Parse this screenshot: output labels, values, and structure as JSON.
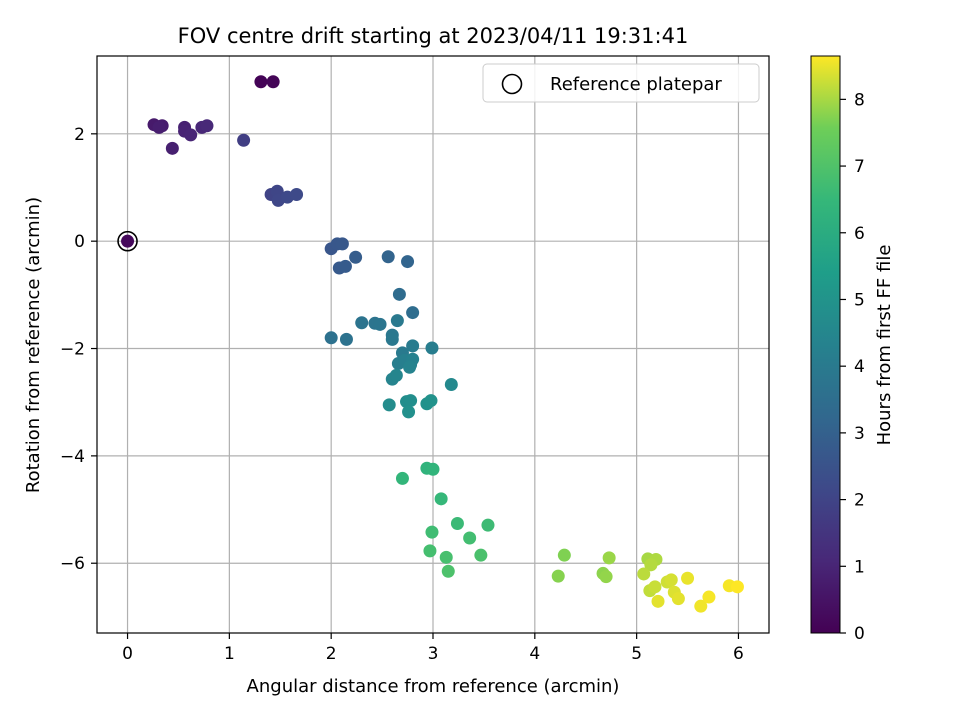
{
  "chart_data": {
    "type": "scatter",
    "title": "FOV centre drift starting at 2023/04/11 19:31:41",
    "xlabel": "Angular distance from reference (arcmin)",
    "ylabel": "Rotation from reference (arcmin)",
    "xlim": [
      -0.3,
      6.3
    ],
    "ylim": [
      -7.3,
      3.45
    ],
    "xticks": [
      0,
      1,
      2,
      3,
      4,
      5,
      6
    ],
    "yticks": [
      -6,
      -4,
      -2,
      0,
      2
    ],
    "grid": true,
    "legend": {
      "position": "top-right",
      "entries": [
        "Reference platepar"
      ]
    },
    "reference_point": {
      "x": 0,
      "y": 0
    },
    "colorbar": {
      "label": "Hours from first FF file",
      "colormap": "viridis",
      "range": [
        0,
        8.65
      ],
      "ticks": [
        0,
        1,
        2,
        3,
        4,
        5,
        6,
        7,
        8
      ]
    },
    "points": [
      {
        "x": 1.31,
        "y": 2.97,
        "c": 0.05
      },
      {
        "x": 1.43,
        "y": 2.97,
        "c": 0.1
      },
      {
        "x": 0.0,
        "y": 0.0,
        "c": 0.2
      },
      {
        "x": 0.26,
        "y": 2.17,
        "c": 0.7
      },
      {
        "x": 0.34,
        "y": 2.15,
        "c": 0.75
      },
      {
        "x": 0.31,
        "y": 2.12,
        "c": 0.8
      },
      {
        "x": 0.44,
        "y": 1.73,
        "c": 0.85
      },
      {
        "x": 0.56,
        "y": 2.12,
        "c": 0.9
      },
      {
        "x": 0.56,
        "y": 2.05,
        "c": 0.95
      },
      {
        "x": 0.62,
        "y": 1.98,
        "c": 1.0
      },
      {
        "x": 0.73,
        "y": 2.12,
        "c": 1.05
      },
      {
        "x": 0.78,
        "y": 2.15,
        "c": 1.1
      },
      {
        "x": 1.14,
        "y": 1.88,
        "c": 1.8
      },
      {
        "x": 1.41,
        "y": 0.87,
        "c": 2.0
      },
      {
        "x": 1.47,
        "y": 0.93,
        "c": 2.05
      },
      {
        "x": 1.48,
        "y": 0.76,
        "c": 2.1
      },
      {
        "x": 1.57,
        "y": 0.82,
        "c": 2.15
      },
      {
        "x": 1.66,
        "y": 0.87,
        "c": 2.2
      },
      {
        "x": 2.0,
        "y": -0.14,
        "c": 2.6
      },
      {
        "x": 2.06,
        "y": -0.05,
        "c": 2.65
      },
      {
        "x": 2.11,
        "y": -0.05,
        "c": 2.7
      },
      {
        "x": 2.08,
        "y": -0.5,
        "c": 2.75
      },
      {
        "x": 2.14,
        "y": -0.47,
        "c": 2.8
      },
      {
        "x": 2.24,
        "y": -0.3,
        "c": 2.85
      },
      {
        "x": 2.56,
        "y": -0.29,
        "c": 3.1
      },
      {
        "x": 2.75,
        "y": -0.38,
        "c": 3.15
      },
      {
        "x": 2.67,
        "y": -0.99,
        "c": 3.4
      },
      {
        "x": 2.8,
        "y": -1.33,
        "c": 3.45
      },
      {
        "x": 2.0,
        "y": -1.8,
        "c": 3.6
      },
      {
        "x": 2.15,
        "y": -1.83,
        "c": 3.65
      },
      {
        "x": 2.3,
        "y": -1.52,
        "c": 3.7
      },
      {
        "x": 2.43,
        "y": -1.53,
        "c": 3.75
      },
      {
        "x": 2.48,
        "y": -1.55,
        "c": 3.8
      },
      {
        "x": 2.6,
        "y": -1.75,
        "c": 3.85
      },
      {
        "x": 2.6,
        "y": -1.83,
        "c": 3.9
      },
      {
        "x": 2.65,
        "y": -1.48,
        "c": 3.95
      },
      {
        "x": 2.7,
        "y": -2.08,
        "c": 4.0
      },
      {
        "x": 2.8,
        "y": -1.95,
        "c": 4.05
      },
      {
        "x": 2.99,
        "y": -1.99,
        "c": 4.1
      },
      {
        "x": 2.66,
        "y": -2.28,
        "c": 4.15
      },
      {
        "x": 2.72,
        "y": -2.22,
        "c": 4.2
      },
      {
        "x": 2.78,
        "y": -2.3,
        "c": 4.25
      },
      {
        "x": 2.8,
        "y": -2.2,
        "c": 4.3
      },
      {
        "x": 2.77,
        "y": -2.35,
        "c": 4.35
      },
      {
        "x": 2.6,
        "y": -2.57,
        "c": 4.4
      },
      {
        "x": 2.64,
        "y": -2.5,
        "c": 4.45
      },
      {
        "x": 3.18,
        "y": -2.67,
        "c": 4.6
      },
      {
        "x": 2.57,
        "y": -3.05,
        "c": 4.7
      },
      {
        "x": 2.74,
        "y": -2.99,
        "c": 4.75
      },
      {
        "x": 2.78,
        "y": -2.97,
        "c": 4.8
      },
      {
        "x": 2.76,
        "y": -3.18,
        "c": 4.85
      },
      {
        "x": 2.94,
        "y": -3.03,
        "c": 4.9
      },
      {
        "x": 2.98,
        "y": -2.97,
        "c": 4.95
      },
      {
        "x": 2.94,
        "y": -4.23,
        "c": 6.3
      },
      {
        "x": 3.0,
        "y": -4.25,
        "c": 6.35
      },
      {
        "x": 2.7,
        "y": -4.42,
        "c": 6.4
      },
      {
        "x": 3.08,
        "y": -4.8,
        "c": 6.5
      },
      {
        "x": 3.24,
        "y": -5.26,
        "c": 6.6
      },
      {
        "x": 3.54,
        "y": -5.29,
        "c": 6.65
      },
      {
        "x": 2.99,
        "y": -5.42,
        "c": 6.7
      },
      {
        "x": 3.36,
        "y": -5.53,
        "c": 6.75
      },
      {
        "x": 2.97,
        "y": -5.77,
        "c": 6.8
      },
      {
        "x": 3.13,
        "y": -5.89,
        "c": 6.85
      },
      {
        "x": 3.47,
        "y": -5.85,
        "c": 6.9
      },
      {
        "x": 3.15,
        "y": -6.15,
        "c": 6.95
      },
      {
        "x": 4.29,
        "y": -5.85,
        "c": 7.7
      },
      {
        "x": 4.23,
        "y": -6.24,
        "c": 7.75
      },
      {
        "x": 4.67,
        "y": -6.19,
        "c": 7.8
      },
      {
        "x": 4.7,
        "y": -6.25,
        "c": 7.85
      },
      {
        "x": 4.73,
        "y": -5.9,
        "c": 7.9
      },
      {
        "x": 5.11,
        "y": -5.92,
        "c": 8.0
      },
      {
        "x": 5.19,
        "y": -5.93,
        "c": 8.05
      },
      {
        "x": 5.14,
        "y": -6.03,
        "c": 8.1
      },
      {
        "x": 5.07,
        "y": -6.2,
        "c": 8.15
      },
      {
        "x": 5.13,
        "y": -6.51,
        "c": 8.2
      },
      {
        "x": 5.18,
        "y": -6.44,
        "c": 8.25
      },
      {
        "x": 5.3,
        "y": -6.35,
        "c": 8.3
      },
      {
        "x": 5.34,
        "y": -6.31,
        "c": 8.35
      },
      {
        "x": 5.37,
        "y": -6.54,
        "c": 8.4
      },
      {
        "x": 5.41,
        "y": -6.66,
        "c": 8.45
      },
      {
        "x": 5.5,
        "y": -6.28,
        "c": 8.5
      },
      {
        "x": 5.21,
        "y": -6.71,
        "c": 8.45
      },
      {
        "x": 5.63,
        "y": -6.8,
        "c": 8.55
      },
      {
        "x": 5.71,
        "y": -6.63,
        "c": 8.6
      },
      {
        "x": 5.91,
        "y": -6.42,
        "c": 8.6
      },
      {
        "x": 5.99,
        "y": -6.44,
        "c": 8.65
      }
    ]
  }
}
